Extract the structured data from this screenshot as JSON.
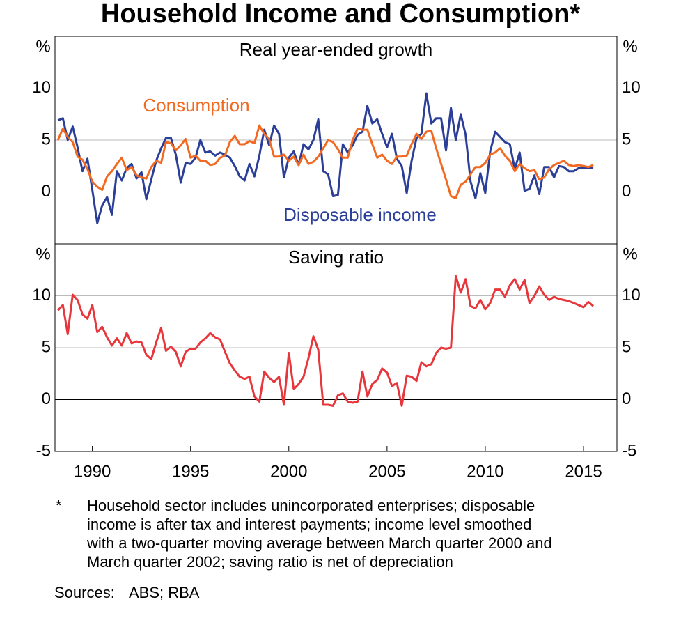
{
  "title": "Household Income and Consumption*",
  "footnote": {
    "marker": "*",
    "lines": [
      "Household sector includes unincorporated enterprises; disposable",
      "income is after tax and interest payments; income level smoothed",
      "with a two-quarter moving average between March quarter 2000 and",
      "March quarter 2002; saving ratio is net of depreciation"
    ]
  },
  "sources": {
    "label": "Sources:",
    "text": "ABS; RBA"
  },
  "chart_data": [
    {
      "type": "line",
      "subtitle": "Real year-ended growth",
      "y_label": "%",
      "y2_label": "%",
      "xlim": [
        1988.1,
        2016.7
      ],
      "ylim": [
        -5,
        15
      ],
      "yticks": [
        0,
        5,
        10
      ],
      "grid": true,
      "x": [
        1988.25,
        1988.5,
        1988.75,
        1989,
        1989.25,
        1989.5,
        1989.75,
        1990,
        1990.25,
        1990.5,
        1990.75,
        1991,
        1991.25,
        1991.5,
        1991.75,
        1992,
        1992.25,
        1992.5,
        1992.75,
        1993,
        1993.25,
        1993.5,
        1993.75,
        1994,
        1994.25,
        1994.5,
        1994.75,
        1995,
        1995.25,
        1995.5,
        1995.75,
        1996,
        1996.25,
        1996.5,
        1996.75,
        1997,
        1997.25,
        1997.5,
        1997.75,
        1998,
        1998.25,
        1998.5,
        1998.75,
        1999,
        1999.25,
        1999.5,
        1999.75,
        2000,
        2000.25,
        2000.5,
        2000.75,
        2001,
        2001.25,
        2001.5,
        2001.75,
        2002,
        2002.25,
        2002.5,
        2002.75,
        2003,
        2003.25,
        2003.5,
        2003.75,
        2004,
        2004.25,
        2004.5,
        2004.75,
        2005,
        2005.25,
        2005.5,
        2005.75,
        2006,
        2006.25,
        2006.5,
        2006.75,
        2007,
        2007.25,
        2007.5,
        2007.75,
        2008,
        2008.25,
        2008.5,
        2008.75,
        2009,
        2009.25,
        2009.5,
        2009.75,
        2010,
        2010.25,
        2010.5,
        2010.75,
        2011,
        2011.25,
        2011.5,
        2011.75,
        2012,
        2012.25,
        2012.5,
        2012.75,
        2013,
        2013.25,
        2013.5,
        2013.75,
        2014,
        2014.25,
        2014.5,
        2014.75,
        2015,
        2015.25,
        2015.5
      ],
      "series": [
        {
          "name": "Disposable income",
          "color": "#2b3f98",
          "values": [
            6.9,
            7.1,
            5.0,
            6.3,
            4.3,
            2.0,
            3.2,
            0.2,
            -3.0,
            -1.3,
            -0.5,
            -2.2,
            2.0,
            1.1,
            2.3,
            2.7,
            1.3,
            1.9,
            -0.7,
            1.2,
            3.0,
            4.2,
            5.2,
            5.2,
            3.6,
            0.9,
            2.8,
            2.7,
            3.3,
            5.0,
            3.8,
            3.9,
            3.5,
            3.8,
            3.6,
            3.3,
            2.5,
            1.5,
            1.1,
            2.7,
            1.5,
            3.5,
            6.0,
            4.5,
            6.4,
            5.6,
            1.4,
            3.3,
            3.9,
            2.6,
            4.6,
            4.1,
            5.0,
            7.0,
            2.0,
            1.7,
            -0.4,
            -0.3,
            4.6,
            3.8,
            4.5,
            5.5,
            5.8,
            8.3,
            6.6,
            7.0,
            5.6,
            4.3,
            5.6,
            3.2,
            2.5,
            -0.1,
            3.0,
            5.2,
            5.6,
            9.5,
            6.6,
            7.1,
            7.1,
            4.0,
            8.1,
            5.0,
            7.5,
            5.5,
            1.0,
            -0.6,
            1.8,
            -0.1,
            3.9,
            5.8,
            5.3,
            4.8,
            4.6,
            2.2,
            3.8,
            0.1,
            0.3,
            1.6,
            -0.2,
            2.4,
            2.4,
            1.4,
            2.5,
            2.4,
            2.0,
            2.0,
            2.3,
            2.3,
            2.3,
            2.3
          ]
        },
        {
          "name": "Consumption",
          "color": "#f26a21",
          "values": [
            5.0,
            6.1,
            5.3,
            4.8,
            3.4,
            3.1,
            2.2,
            1.0,
            0.5,
            0.2,
            1.5,
            2.0,
            2.7,
            3.3,
            2.1,
            2.4,
            1.6,
            1.4,
            1.3,
            2.4,
            3.0,
            2.8,
            4.8,
            4.7,
            4.0,
            4.5,
            5.1,
            3.3,
            3.5,
            3.0,
            3.0,
            2.6,
            2.7,
            3.3,
            3.5,
            4.8,
            5.4,
            4.6,
            4.6,
            4.9,
            4.7,
            6.4,
            5.6,
            5.1,
            3.4,
            3.4,
            3.6,
            3.0,
            3.4,
            2.6,
            3.6,
            2.7,
            2.9,
            3.4,
            4.2,
            5.0,
            4.8,
            4.1,
            3.3,
            3.3,
            5.0,
            6.1,
            6.0,
            6.0,
            4.6,
            3.3,
            3.6,
            3.0,
            2.7,
            3.4,
            3.4,
            3.5,
            4.6,
            5.6,
            5.1,
            5.8,
            5.9,
            4.2,
            2.7,
            1.2,
            -0.4,
            -0.6,
            0.7,
            1.0,
            1.7,
            2.4,
            2.4,
            2.8,
            3.6,
            3.8,
            4.2,
            3.5,
            3.0,
            2.0,
            2.7,
            2.3,
            2.0,
            2.1,
            1.2,
            1.4,
            2.2,
            2.6,
            2.8,
            3.0,
            2.6,
            2.5,
            2.6,
            2.5,
            2.4,
            2.6
          ]
        }
      ]
    },
    {
      "type": "line",
      "subtitle": "Saving ratio",
      "y_label": "%",
      "y2_label": "%",
      "xlim": [
        1988.1,
        2016.7
      ],
      "ylim": [
        -5,
        15
      ],
      "yticks": [
        -5,
        0,
        5,
        10
      ],
      "grid": true,
      "xticks": [
        1990,
        1995,
        2000,
        2005,
        2010,
        2015
      ],
      "x": [
        1988.25,
        1988.5,
        1988.75,
        1989,
        1989.25,
        1989.5,
        1989.75,
        1990,
        1990.25,
        1990.5,
        1990.75,
        1991,
        1991.25,
        1991.5,
        1991.75,
        1992,
        1992.25,
        1992.5,
        1992.75,
        1993,
        1993.25,
        1993.5,
        1993.75,
        1994,
        1994.25,
        1994.5,
        1994.75,
        1995,
        1995.25,
        1995.5,
        1995.75,
        1996,
        1996.25,
        1996.5,
        1996.75,
        1997,
        1997.25,
        1997.5,
        1997.75,
        1998,
        1998.25,
        1998.5,
        1998.75,
        1999,
        1999.25,
        1999.5,
        1999.75,
        2000,
        2000.25,
        2000.5,
        2000.75,
        2001,
        2001.25,
        2001.5,
        2001.75,
        2002,
        2002.25,
        2002.5,
        2002.75,
        2003,
        2003.25,
        2003.5,
        2003.75,
        2004,
        2004.25,
        2004.5,
        2004.75,
        2005,
        2005.25,
        2005.5,
        2005.75,
        2006,
        2006.25,
        2006.5,
        2006.75,
        2007,
        2007.25,
        2007.5,
        2007.75,
        2008,
        2008.25,
        2008.5,
        2008.75,
        2009,
        2009.25,
        2009.5,
        2009.75,
        2010,
        2010.25,
        2010.5,
        2010.75,
        2011,
        2011.25,
        2011.5,
        2011.75,
        2012,
        2012.25,
        2012.5,
        2012.75,
        2013,
        2013.25,
        2013.5,
        2013.75,
        2014,
        2014.25,
        2014.5,
        2014.75,
        2015,
        2015.25,
        2015.5
      ],
      "series": [
        {
          "name": "Saving ratio",
          "color": "#e8373c",
          "values": [
            8.6,
            9.1,
            6.3,
            10.1,
            9.6,
            8.2,
            7.8,
            9.1,
            6.5,
            7.0,
            6.0,
            5.2,
            5.9,
            5.2,
            6.4,
            5.4,
            5.6,
            5.5,
            4.3,
            3.9,
            5.5,
            6.9,
            4.7,
            5.1,
            4.6,
            3.2,
            4.6,
            4.9,
            4.9,
            5.5,
            5.9,
            6.4,
            6.0,
            5.8,
            4.6,
            3.5,
            2.8,
            2.2,
            2.0,
            2.2,
            0.3,
            -0.2,
            2.7,
            2.1,
            1.7,
            2.2,
            -0.5,
            4.5,
            1.0,
            1.5,
            2.2,
            4.0,
            6.1,
            4.8,
            -0.5,
            -0.5,
            -0.6,
            0.4,
            0.6,
            -0.2,
            -0.3,
            -0.2,
            2.7,
            0.3,
            1.5,
            1.9,
            3.0,
            2.6,
            1.3,
            1.6,
            -0.6,
            2.3,
            2.2,
            1.8,
            3.6,
            3.2,
            3.4,
            4.5,
            5.0,
            4.9,
            5.0,
            11.9,
            10.3,
            11.6,
            9.0,
            8.8,
            9.6,
            8.7,
            9.3,
            10.6,
            10.6,
            9.9,
            11.0,
            11.6,
            10.6,
            11.5,
            9.3,
            10.0,
            10.9,
            10.1,
            9.6,
            9.9,
            9.7,
            9.6,
            9.5,
            9.3,
            9.1,
            8.9,
            9.4,
            9.0
          ]
        }
      ]
    }
  ]
}
